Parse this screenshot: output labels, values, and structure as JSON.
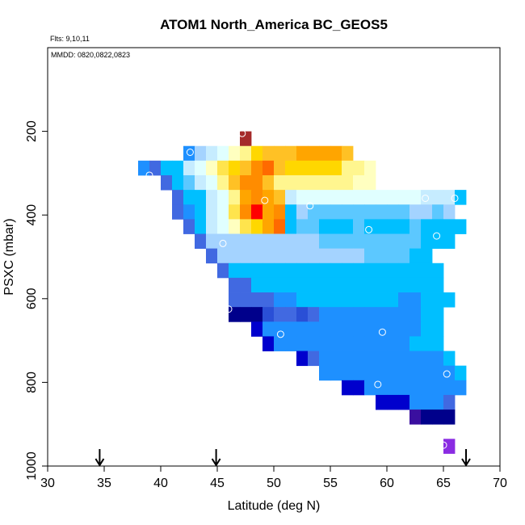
{
  "chart_data": {
    "type": "heatmap",
    "title": "ATOM1 North_America BC_GEOS5",
    "flights_note": "Flts: 9,10,11",
    "dates_note": "MMDD: 0820,0822,0823",
    "xlabel": "Latitude (deg N)",
    "ylabel": "PSXC (mbar)",
    "xlim": [
      30,
      70
    ],
    "ylim": [
      1000,
      0
    ],
    "y_reversed": true,
    "x_ticks": [
      30,
      35,
      40,
      45,
      50,
      55,
      60,
      65,
      70
    ],
    "y_ticks": [
      200,
      400,
      600,
      800,
      1000
    ],
    "grid": false,
    "legend": "none",
    "cell_width_deg": 1,
    "cell_height_mbar": 35,
    "colors": {
      "a": "#a52a2a",
      "b": "#ff0000",
      "c": "#ff6a00",
      "d": "#ff8c00",
      "e": "#ffa500",
      "f": "#ffc125",
      "g": "#ffd700",
      "h": "#ffe44d",
      "i": "#fff68f",
      "j": "#ffffc0",
      "k": "#e0ffff",
      "l": "#c6ecff",
      "m": "#a4d3ff",
      "n": "#5cc8ff",
      "o": "#00bfff",
      "p": "#1e90ff",
      "q": "#4169e1",
      "r": "#2a4fd6",
      "s": "#0000cd",
      "t": "#00008b",
      "u": "#3a0f9f",
      "v": "#8a2be2"
    },
    "rows": [
      {
        "p": 200,
        "x0": 47,
        "cells": "a"
      },
      {
        "p": 235,
        "x0": 42,
        "cells": "pmlkjigfffeeeef"
      },
      {
        "p": 270,
        "x0": 38,
        "cells": "pqoolkjhgfdcfgggggiij"
      },
      {
        "p": 305,
        "x0": 40,
        "cells": "qonlkifddfiiiiiiijj"
      },
      {
        "p": 340,
        "x0": 41,
        "cells": "qoolkiedeflkkkkkkkkkkklllo"
      },
      {
        "p": 375,
        "x0": 41,
        "cells": "qpolkhdbedomnnnnnnnnnmmnm"
      },
      {
        "p": 410,
        "x0": 42,
        "cells": "qolkjhgeconnooonoooonoooo"
      },
      {
        "p": 445,
        "x0": 43,
        "cells": "qmmmmmmmmmmnnnnnnnnnooo"
      },
      {
        "p": 480,
        "x0": 44,
        "cells": "qmmmmmmmmmmmmmnnnnoo"
      },
      {
        "p": 515,
        "x0": 45,
        "cells": "qooooooooooooooooooo"
      },
      {
        "p": 550,
        "x0": 46,
        "cells": "qqooooooooooooooooo"
      },
      {
        "p": 585,
        "x0": 46,
        "cells": "qqqqppoooooooooppooo"
      },
      {
        "p": 620,
        "x0": 46,
        "cells": "tttrqqrqpppppppppoo"
      },
      {
        "p": 655,
        "x0": 48,
        "cells": "sppppppppppppppoo"
      },
      {
        "p": 690,
        "x0": 49,
        "cells": "sppppppppppppooo"
      },
      {
        "p": 725,
        "x0": 52,
        "cells": "sqpppppppppppo"
      },
      {
        "p": 760,
        "x0": 54,
        "cells": "ppppppppppppo"
      },
      {
        "p": 795,
        "x0": 56,
        "cells": "ssppppppppp"
      },
      {
        "p": 830,
        "x0": 59,
        "cells": "ssspppq"
      },
      {
        "p": 865,
        "x0": 62,
        "cells": "uttt"
      },
      {
        "p": 935,
        "x0": 65,
        "cells": "v"
      }
    ],
    "points": [
      {
        "x": 47.2,
        "y": 205
      },
      {
        "x": 42.6,
        "y": 250
      },
      {
        "x": 51.8,
        "y": 210
      },
      {
        "x": 57.2,
        "y": 225
      },
      {
        "x": 39.0,
        "y": 305
      },
      {
        "x": 49.2,
        "y": 365
      },
      {
        "x": 53.2,
        "y": 378
      },
      {
        "x": 63.4,
        "y": 360
      },
      {
        "x": 66.0,
        "y": 360
      },
      {
        "x": 58.4,
        "y": 435
      },
      {
        "x": 64.4,
        "y": 450
      },
      {
        "x": 45.5,
        "y": 468
      },
      {
        "x": 46.0,
        "y": 625
      },
      {
        "x": 50.6,
        "y": 685
      },
      {
        "x": 59.6,
        "y": 680
      },
      {
        "x": 65.3,
        "y": 780
      },
      {
        "x": 59.2,
        "y": 805
      },
      {
        "x": 65.0,
        "y": 950
      }
    ],
    "flight_arrows_lat": [
      34.6,
      44.9,
      67.0
    ]
  }
}
